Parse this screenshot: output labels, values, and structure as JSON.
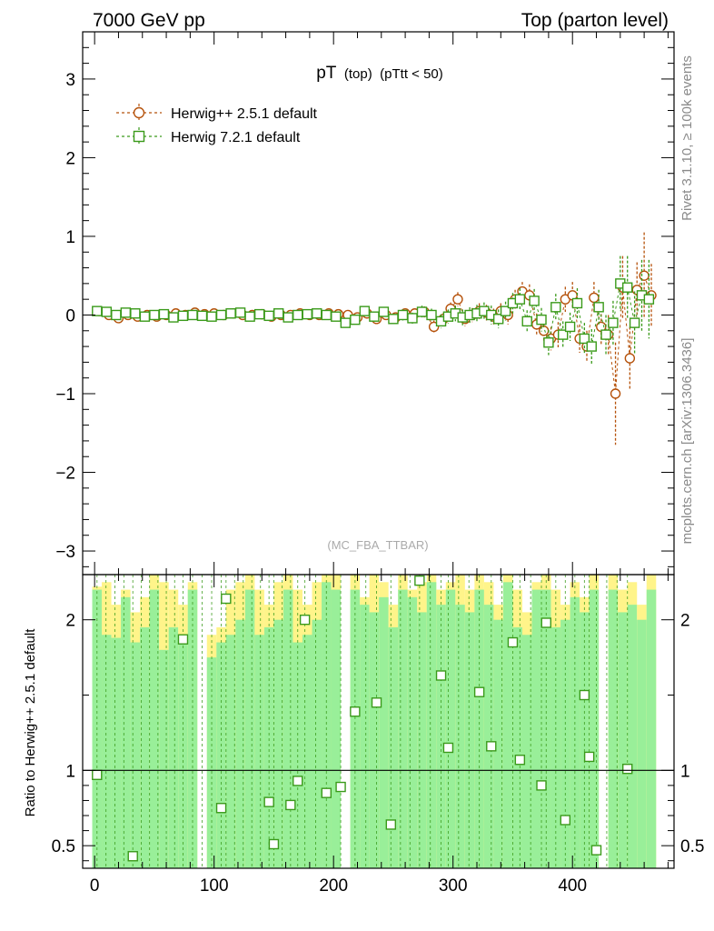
{
  "header": {
    "left": "7000 GeV pp",
    "right": "Top (parton level)"
  },
  "side_labels": {
    "rivet": "Rivet 3.1.10, ≥ 100k events",
    "site": "mcplots.cern.ch [arXiv:1306.3436]"
  },
  "colors": {
    "herwigpp": "#b5520b",
    "herwig7": "#3a9a1a",
    "band_green": "#99ef99",
    "band_yellow": "#fff48a"
  },
  "chart_data": [
    {
      "type": "scatter",
      "title": "pT",
      "title_sub1": "(top)",
      "title_sub2": "(pTtt < 50)",
      "analysis": "(MC_FBA_TTBAR)",
      "xlabel": "",
      "ylabel": "",
      "xlim": [
        -10,
        485
      ],
      "ylim": [
        -3.3,
        3.6
      ],
      "yticks": [
        -3,
        -2,
        -1,
        0,
        1,
        2,
        3
      ],
      "ytick_labels": [
        "−3",
        "−2",
        "−1",
        "0",
        "1",
        "2",
        "3"
      ],
      "legend": [
        "Herwig++ 2.5.1 default",
        "Herwig 7.2.1 default"
      ],
      "legend_position": "top-left",
      "series": [
        {
          "name": "Herwig++ 2.5.1 default",
          "marker": "circle",
          "x": [
            4,
            12,
            20,
            28,
            36,
            44,
            52,
            60,
            68,
            76,
            84,
            92,
            100,
            108,
            116,
            124,
            132,
            140,
            148,
            156,
            164,
            172,
            180,
            188,
            196,
            204,
            212,
            220,
            228,
            236,
            244,
            252,
            260,
            268,
            276,
            284,
            292,
            298,
            304,
            310,
            316,
            322,
            328,
            334,
            340,
            346,
            352,
            358,
            364,
            370,
            376,
            382,
            388,
            394,
            400,
            406,
            412,
            418,
            424,
            430,
            436,
            442,
            448,
            454,
            460,
            466
          ],
          "y": [
            0.05,
            0.0,
            -0.04,
            0.0,
            -0.02,
            0.0,
            -0.02,
            0.0,
            0.02,
            0.0,
            0.03,
            0.01,
            0.02,
            0.0,
            0.02,
            0.0,
            0.0,
            0.01,
            -0.02,
            0.0,
            0.0,
            0.02,
            0.0,
            0.0,
            0.02,
            0.01,
            0.0,
            -0.03,
            0.02,
            -0.05,
            0.0,
            -0.03,
            0.02,
            0.02,
            0.04,
            -0.15,
            -0.05,
            0.08,
            0.2,
            -0.05,
            0.0,
            0.05,
            0.03,
            -0.02,
            0.05,
            0.0,
            0.2,
            0.3,
            0.25,
            -0.12,
            -0.2,
            -0.3,
            -0.25,
            0.2,
            0.25,
            -0.3,
            -0.4,
            0.22,
            -0.15,
            -0.25,
            -1.0,
            0.35,
            -0.55,
            0.32,
            0.5,
            0.25
          ],
          "yerr": [
            0.03,
            0.03,
            0.03,
            0.03,
            0.03,
            0.03,
            0.03,
            0.03,
            0.03,
            0.03,
            0.03,
            0.03,
            0.03,
            0.03,
            0.03,
            0.03,
            0.03,
            0.03,
            0.03,
            0.03,
            0.03,
            0.04,
            0.04,
            0.04,
            0.04,
            0.04,
            0.04,
            0.05,
            0.05,
            0.05,
            0.05,
            0.05,
            0.06,
            0.06,
            0.07,
            0.08,
            0.08,
            0.08,
            0.09,
            0.09,
            0.09,
            0.1,
            0.1,
            0.1,
            0.1,
            0.12,
            0.12,
            0.12,
            0.14,
            0.14,
            0.14,
            0.15,
            0.16,
            0.16,
            0.17,
            0.18,
            0.2,
            0.2,
            0.22,
            0.25,
            0.65,
            0.4,
            0.4,
            0.35,
            0.55,
            0.4
          ]
        },
        {
          "name": "Herwig 7.2.1 default",
          "marker": "square",
          "x": [
            2,
            10,
            18,
            26,
            34,
            42,
            50,
            58,
            66,
            74,
            82,
            90,
            98,
            106,
            114,
            122,
            130,
            138,
            146,
            154,
            162,
            170,
            178,
            186,
            194,
            202,
            210,
            218,
            226,
            234,
            242,
            250,
            258,
            266,
            274,
            282,
            290,
            296,
            302,
            308,
            314,
            320,
            326,
            332,
            338,
            344,
            350,
            356,
            362,
            368,
            374,
            380,
            386,
            392,
            398,
            404,
            410,
            416,
            422,
            428,
            434,
            440,
            446,
            452,
            458,
            464
          ],
          "y": [
            0.05,
            0.04,
            0.0,
            0.03,
            0.02,
            -0.02,
            0.0,
            0.01,
            -0.03,
            -0.01,
            0.0,
            -0.01,
            -0.02,
            0.0,
            0.02,
            0.03,
            -0.02,
            0.01,
            -0.01,
            0.02,
            -0.03,
            0.0,
            0.01,
            0.02,
            0.0,
            -0.02,
            -0.1,
            -0.06,
            0.05,
            -0.02,
            0.04,
            -0.05,
            0.0,
            -0.04,
            0.04,
            0.0,
            -0.08,
            -0.02,
            0.02,
            -0.03,
            0.0,
            0.02,
            0.05,
            0.0,
            -0.05,
            0.05,
            0.15,
            0.2,
            -0.08,
            0.18,
            -0.06,
            -0.35,
            0.1,
            -0.25,
            -0.15,
            0.15,
            -0.3,
            -0.4,
            0.1,
            -0.25,
            -0.1,
            0.4,
            0.35,
            -0.1,
            0.25,
            0.2
          ],
          "yerr": [
            0.03,
            0.03,
            0.03,
            0.03,
            0.03,
            0.03,
            0.03,
            0.03,
            0.03,
            0.03,
            0.03,
            0.03,
            0.03,
            0.03,
            0.03,
            0.03,
            0.03,
            0.03,
            0.04,
            0.04,
            0.04,
            0.04,
            0.04,
            0.04,
            0.04,
            0.05,
            0.05,
            0.05,
            0.05,
            0.06,
            0.06,
            0.06,
            0.07,
            0.07,
            0.08,
            0.08,
            0.09,
            0.09,
            0.1,
            0.1,
            0.1,
            0.11,
            0.11,
            0.12,
            0.12,
            0.12,
            0.13,
            0.14,
            0.14,
            0.15,
            0.15,
            0.16,
            0.17,
            0.17,
            0.18,
            0.19,
            0.2,
            0.22,
            0.22,
            0.25,
            0.28,
            0.35,
            0.4,
            0.4,
            0.45,
            0.5
          ]
        }
      ]
    },
    {
      "type": "scatter",
      "title": "",
      "xlabel": "",
      "ylabel": "Ratio to Herwig++ 2.5.1 default",
      "xlim": [
        -10,
        485
      ],
      "ylim": [
        0.35,
        2.3
      ],
      "yticks": [
        0.5,
        1,
        2
      ],
      "ytick_labels": [
        "0.5",
        "1",
        "2"
      ],
      "xticks": [
        0,
        100,
        200,
        300,
        400
      ],
      "xtick_labels": [
        "0",
        "100",
        "200",
        "300",
        "400"
      ],
      "reference_line": 1,
      "band": {
        "x": [
          2,
          10,
          18,
          26,
          34,
          42,
          50,
          58,
          66,
          74,
          82,
          90,
          98,
          106,
          114,
          122,
          130,
          138,
          146,
          154,
          162,
          170,
          178,
          186,
          194,
          202,
          210,
          218,
          226,
          234,
          242,
          250,
          258,
          266,
          274,
          282,
          290,
          298,
          306,
          314,
          322,
          330,
          338,
          346,
          354,
          362,
          370,
          378,
          386,
          394,
          402,
          410,
          418,
          426,
          434,
          442,
          450,
          458,
          466
        ],
        "upper": [
          2.3,
          2.3,
          2.3,
          2.3,
          2.3,
          2.3,
          2.3,
          2.3,
          2.3,
          2.3,
          2.3,
          null,
          2.3,
          2.3,
          2.3,
          2.3,
          2.3,
          2.3,
          2.3,
          2.3,
          2.3,
          2.3,
          2.3,
          2.3,
          2.3,
          2.3,
          null,
          2.3,
          2.3,
          2.3,
          2.3,
          2.3,
          2.3,
          2.3,
          2.3,
          2.3,
          2.3,
          2.3,
          2.3,
          2.3,
          2.3,
          2.3,
          2.3,
          2.3,
          2.3,
          2.3,
          2.3,
          2.3,
          2.3,
          2.3,
          2.3,
          2.3,
          2.3,
          null,
          2.3,
          2.3,
          2.3,
          2.3,
          2.3
        ],
        "yellow_top": [
          2.22,
          2.25,
          2.1,
          2.2,
          2.05,
          2.15,
          2.3,
          2.25,
          2.2,
          2.1,
          2.25,
          null,
          1.9,
          1.95,
          2.2,
          2.25,
          2.3,
          2.2,
          2.1,
          2.25,
          2.3,
          2.2,
          2.1,
          2.25,
          2.3,
          2.3,
          null,
          2.3,
          2.15,
          2.3,
          2.25,
          2.1,
          2.3,
          2.2,
          2.25,
          2.3,
          2.2,
          2.25,
          2.3,
          2.2,
          2.3,
          2.25,
          2.1,
          2.3,
          2.2,
          2.05,
          2.25,
          2.3,
          2.2,
          2.1,
          2.25,
          2.15,
          2.3,
          null,
          2.3,
          2.2,
          2.25,
          2.1,
          2.3
        ],
        "green_top": [
          2.2,
          1.9,
          1.88,
          2.15,
          1.85,
          1.95,
          2.2,
          1.8,
          1.95,
          1.88,
          2.2,
          null,
          1.75,
          1.85,
          1.9,
          2.0,
          2.2,
          1.9,
          1.95,
          2.0,
          2.2,
          1.85,
          1.9,
          2.0,
          2.25,
          2.2,
          null,
          2.2,
          2.1,
          2.05,
          2.15,
          1.95,
          2.2,
          2.15,
          2.05,
          2.25,
          2.1,
          2.2,
          2.1,
          2.05,
          2.2,
          2.1,
          2.0,
          2.25,
          1.95,
          1.9,
          2.2,
          2.2,
          1.95,
          2.0,
          2.15,
          2.05,
          2.2,
          null,
          2.2,
          2.05,
          2.1,
          2.0,
          2.2
        ]
      },
      "series": [
        {
          "name": "Herwig 7.2.1 default / Herwig++ 2.5.1 default",
          "marker": "square",
          "x": [
            2,
            32,
            74,
            106,
            110,
            146,
            150,
            164,
            170,
            176,
            194,
            206,
            218,
            236,
            248,
            272,
            290,
            296,
            322,
            332,
            350,
            356,
            374,
            378,
            394,
            410,
            414,
            420,
            446
          ],
          "y": [
            0.97,
            0.43,
            1.87,
            0.75,
            2.14,
            0.79,
            0.51,
            0.77,
            0.93,
            2.0,
            0.85,
            0.89,
            1.39,
            1.45,
            0.64,
            2.26,
            1.63,
            1.15,
            1.52,
            1.16,
            1.85,
            1.07,
            0.9,
            1.98,
            0.67,
            1.5,
            1.09,
            0.47,
            1.01
          ]
        }
      ]
    }
  ]
}
